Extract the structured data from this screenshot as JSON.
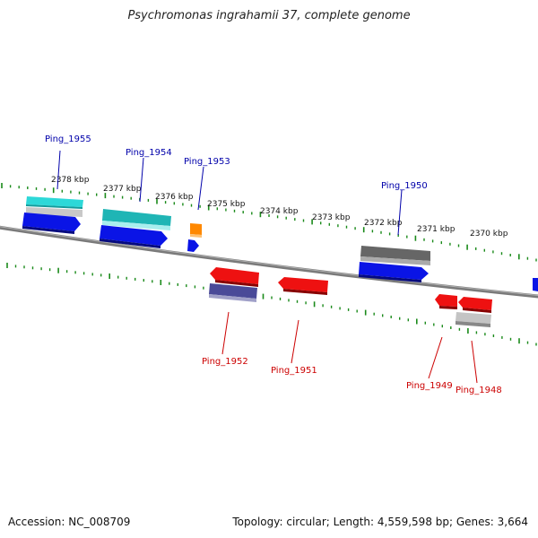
{
  "title": "Psychromonas ingrahamii 37, complete genome",
  "footer": {
    "accession": "Accession: NC_008709",
    "summary": "Topology: circular; Length: 4,559,598 bp; Genes: 3,664"
  },
  "colors": {
    "backbone": "#808080",
    "tick": "#1a8a1a",
    "forward_label": "#0000aa",
    "reverse_label": "#cc0000",
    "blue": "#0a14e6",
    "cyan": "#22cccc",
    "teal": "#1fb5b5",
    "orange": "#ff8800",
    "dark_gray": "#666666",
    "light_gray": "#bbbbbb",
    "red": "#ee1111",
    "slate": "#3c3c88"
  },
  "scale": {
    "unit": "kbp",
    "labels": [
      "2378 kbp",
      "2377 kbp",
      "2376 kbp",
      "2375 kbp",
      "2374 kbp",
      "2373 kbp",
      "2372 kbp",
      "2371 kbp",
      "2370 kbp"
    ]
  },
  "genes": [
    {
      "name": "Ping_1955",
      "strand": "forward"
    },
    {
      "name": "Ping_1954",
      "strand": "forward"
    },
    {
      "name": "Ping_1953",
      "strand": "forward"
    },
    {
      "name": "Ping_1950",
      "strand": "forward"
    },
    {
      "name": "Ping_1952",
      "strand": "reverse"
    },
    {
      "name": "Ping_1951",
      "strand": "reverse"
    },
    {
      "name": "Ping_1949",
      "strand": "reverse"
    },
    {
      "name": "Ping_1948",
      "strand": "reverse"
    }
  ]
}
